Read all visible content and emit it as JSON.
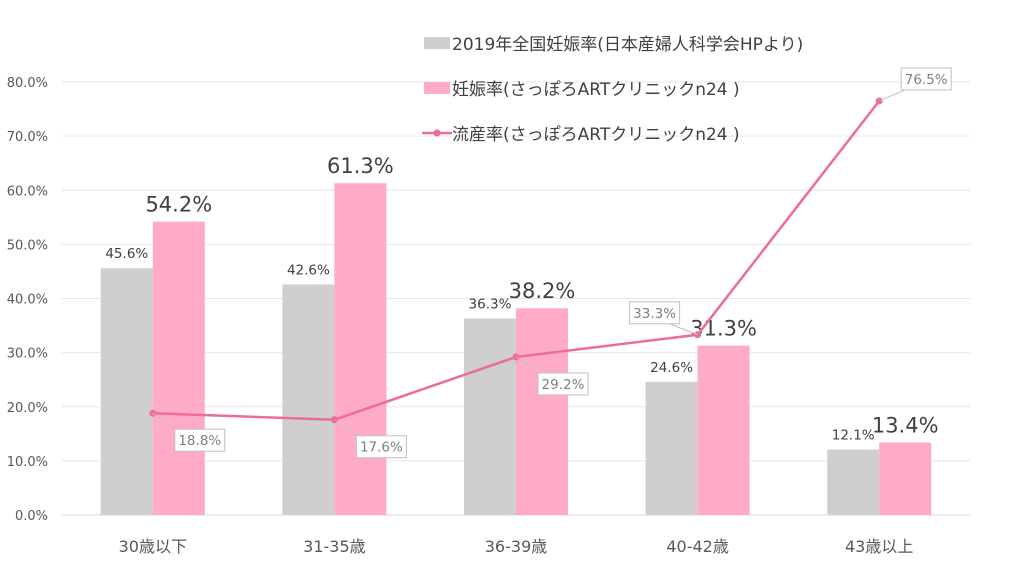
{
  "chart_data": {
    "type": "bar",
    "categories": [
      "30歳以下",
      "31-35歳",
      "36-39歳",
      "40-42歳",
      "43歳以上"
    ],
    "series": [
      {
        "name": "2019年全国妊娠率(日本産婦人科学会HPより)",
        "kind": "bar",
        "color": "#d0cece",
        "values": [
          45.6,
          42.6,
          36.3,
          24.6,
          12.1
        ],
        "labels": [
          "45.6%",
          "42.6%",
          "36.3%",
          "24.6%",
          "12.1%"
        ]
      },
      {
        "name": "妊娠率(さっぽろARTクリニックn24 )",
        "kind": "bar",
        "color": "#ffabc7",
        "values": [
          54.2,
          61.3,
          38.2,
          31.3,
          13.4
        ],
        "labels": [
          "54.2%",
          "61.3%",
          "38.2%",
          "31.3%",
          "13.4%"
        ]
      },
      {
        "name": "流産率(さっぽろARTクリニックn24 )",
        "kind": "line",
        "color": "#ec6d98",
        "values": [
          18.8,
          17.6,
          29.2,
          33.3,
          76.5
        ],
        "labels": [
          "18.8%",
          "17.6%",
          "29.2%",
          "33.3%",
          "76.5%"
        ]
      }
    ],
    "ylim": [
      0,
      80
    ],
    "yticks": [
      0,
      10,
      20,
      30,
      40,
      50,
      60,
      70,
      80
    ],
    "ytick_labels": [
      "0.0%",
      "10.0%",
      "20.0%",
      "30.0%",
      "40.0%",
      "50.0%",
      "60.0%",
      "70.0%",
      "80.0%"
    ],
    "grid": true,
    "legend_position": "top-right",
    "title": "",
    "xlabel": "",
    "ylabel": ""
  }
}
